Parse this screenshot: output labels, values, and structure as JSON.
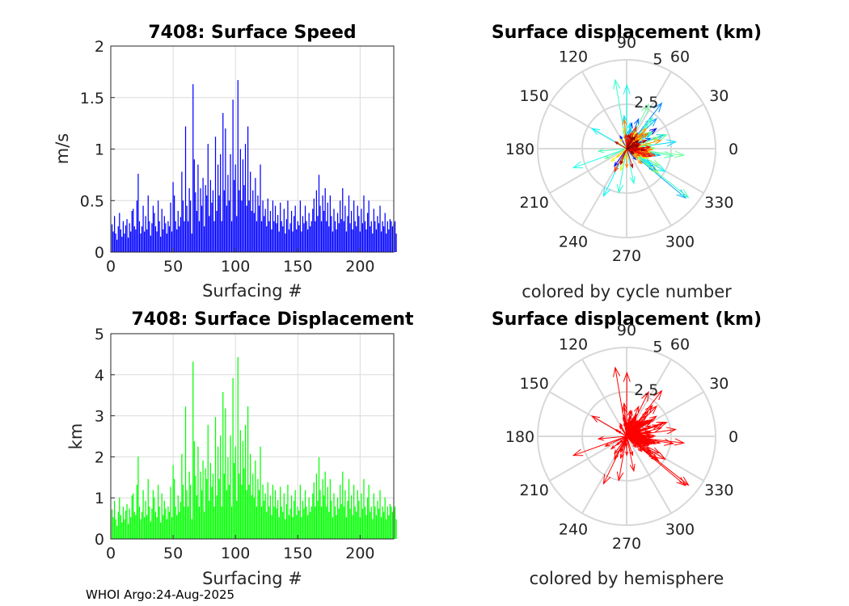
{
  "chart_data": [
    {
      "type": "bar",
      "title": "7408: Surface Speed",
      "xlabel": "Surfacing #",
      "ylabel": "m/s",
      "xlim": [
        0,
        227
      ],
      "ylim": [
        0,
        2
      ],
      "xticks": [
        0,
        50,
        100,
        150,
        200
      ],
      "yticks": [
        0,
        0.5,
        1,
        1.5,
        2
      ],
      "ytick_labels": [
        "0",
        "0.5",
        "1",
        "1.5",
        "2"
      ],
      "grid": true,
      "color": "#0000ff",
      "values": [
        0.27,
        0.2,
        0.35,
        0.18,
        0.12,
        0.25,
        0.38,
        0.22,
        0.15,
        0.3,
        0.18,
        0.26,
        0.32,
        0.14,
        0.28,
        0.2,
        0.4,
        0.42,
        0.25,
        0.22,
        0.5,
        0.76,
        0.3,
        0.18,
        0.25,
        0.45,
        0.2,
        0.35,
        0.22,
        0.55,
        0.3,
        0.16,
        0.28,
        0.45,
        0.38,
        0.25,
        0.2,
        0.5,
        0.3,
        0.15,
        0.42,
        0.22,
        0.35,
        0.28,
        0.18,
        0.3,
        0.25,
        0.48,
        0.2,
        0.68,
        0.55,
        0.3,
        0.22,
        0.4,
        0.25,
        0.34,
        0.78,
        0.5,
        0.3,
        1.22,
        0.45,
        0.3,
        0.62,
        0.5,
        0.18,
        1.63,
        0.9,
        0.58,
        0.4,
        0.85,
        0.3,
        0.62,
        0.45,
        0.72,
        0.25,
        0.65,
        0.55,
        1.05,
        0.35,
        0.7,
        0.48,
        0.6,
        0.3,
        1.12,
        0.4,
        0.85,
        0.55,
        0.95,
        0.3,
        1.35,
        0.6,
        1.2,
        0.45,
        0.75,
        0.5,
        0.95,
        0.3,
        1.48,
        0.7,
        0.85,
        0.35,
        1.67,
        0.6,
        1.0,
        0.5,
        0.9,
        0.65,
        1.05,
        0.45,
        1.22,
        0.5,
        0.78,
        0.4,
        0.6,
        0.38,
        0.72,
        0.3,
        0.55,
        0.45,
        0.85,
        0.3,
        0.5,
        0.35,
        0.42,
        0.25,
        0.52,
        0.3,
        0.4,
        0.22,
        0.5,
        0.3,
        0.45,
        0.28,
        0.36,
        0.2,
        0.48,
        0.3,
        0.25,
        0.42,
        0.18,
        0.32,
        0.5,
        0.22,
        0.28,
        0.4,
        0.2,
        0.35,
        0.45,
        0.22,
        0.3,
        0.26,
        0.5,
        0.2,
        0.35,
        0.28,
        0.45,
        0.3,
        0.22,
        0.38,
        0.25,
        0.3,
        0.42,
        0.52,
        0.3,
        0.6,
        0.35,
        0.75,
        0.45,
        0.3,
        0.55,
        0.4,
        0.62,
        0.3,
        0.48,
        0.25,
        0.55,
        0.35,
        0.2,
        0.42,
        0.3,
        0.22,
        0.38,
        0.28,
        0.5,
        0.32,
        0.62,
        0.3,
        0.45,
        0.2,
        0.35,
        0.55,
        0.28,
        0.4,
        0.22,
        0.5,
        0.3,
        0.25,
        0.45,
        0.35,
        0.2,
        0.42,
        0.28,
        0.55,
        0.3,
        0.22,
        0.38,
        0.5,
        0.25,
        0.3,
        0.18,
        0.42,
        0.3,
        0.22,
        0.35,
        0.28,
        0.45,
        0.2,
        0.3,
        0.25,
        0.38,
        0.18,
        0.3,
        0.22,
        0.32,
        0.3,
        0.25,
        0.28,
        0.3,
        0.18
      ]
    },
    {
      "type": "polar",
      "title": "Surface displacement (km)",
      "subtitle": "colored by cycle number",
      "angle_labels": [
        "0",
        "30",
        "60",
        "90",
        "120",
        "150",
        "180",
        "210",
        "240",
        "270",
        "300",
        "330"
      ],
      "radial_ticks": [
        2.5,
        5
      ],
      "radial_tick_labels": [
        "2.5",
        "5"
      ],
      "rmax": 5,
      "color_mode": "cycle"
    },
    {
      "type": "bar",
      "title": "7408: Surface Displacement",
      "xlabel": "Surfacing #",
      "ylabel": "km",
      "xlim": [
        0,
        227
      ],
      "ylim": [
        0,
        5
      ],
      "xticks": [
        0,
        50,
        100,
        150,
        200
      ],
      "yticks": [
        0,
        1,
        2,
        3,
        4,
        5
      ],
      "ytick_labels": [
        "0",
        "1",
        "2",
        "3",
        "4",
        "5"
      ],
      "grid": true,
      "color": "#00ff00"
    },
    {
      "type": "polar",
      "title": "Surface displacement (km)",
      "subtitle": "colored by hemisphere",
      "angle_labels": [
        "0",
        "30",
        "60",
        "90",
        "120",
        "150",
        "180",
        "210",
        "240",
        "270",
        "300",
        "330"
      ],
      "radial_ticks": [
        2.5,
        5
      ],
      "radial_tick_labels": [
        "2.5",
        "5"
      ],
      "rmax": 5,
      "color_mode": "hemisphere",
      "color": "#ff0000"
    }
  ],
  "footer": "WHOI Argo:24-Aug-2025"
}
